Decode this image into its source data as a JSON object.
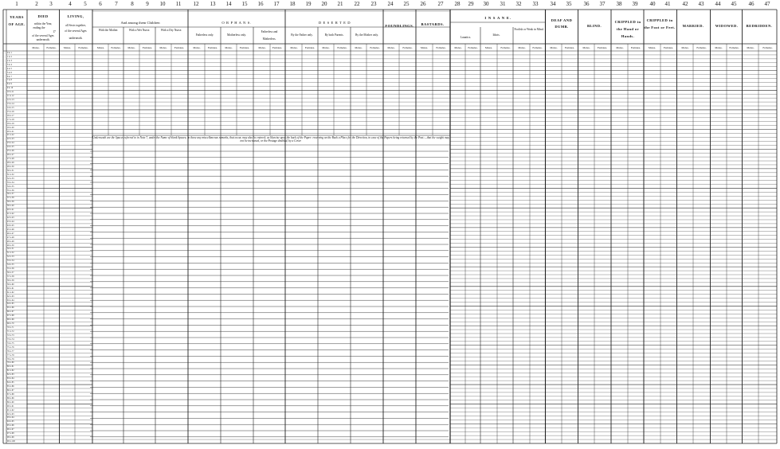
{
  "column_numbers": [
    "1",
    "2",
    "3",
    "4",
    "5",
    "6",
    "7",
    "8",
    "9",
    "10",
    "11",
    "12",
    "13",
    "14",
    "15",
    "16",
    "17",
    "18",
    "19",
    "20",
    "21",
    "22",
    "23",
    "24",
    "25",
    "26",
    "27",
    "28",
    "29",
    "30",
    "31",
    "32",
    "33",
    "34",
    "35",
    "36",
    "37",
    "38",
    "39",
    "40",
    "41",
    "42",
    "43",
    "44",
    "45",
    "46",
    "47"
  ],
  "headers": {
    "years_of_age": "YEARS OF AGE.",
    "died_title": "DIED",
    "died_line1": "within the Year,",
    "died_line2": "ending the",
    "died_line3": "of the several Ages",
    "died_line4": "underneath.",
    "died_year": "17",
    "living_title": "LIVING,",
    "living_line1": "all Sexts together,",
    "living_line2": "of the several Ages",
    "living_line3": "underneath.",
    "children_title": "And among them Children",
    "with_mother": "With the Mother.",
    "with_wet_nurse": "With a Wet Nurse.",
    "with_dry_nurse": "With a Dry Nurse.",
    "orphans_title": "O R P H A N S.",
    "fatherless": "Fatherless only.",
    "motherless": "Motherless only.",
    "fatherless_and_motherless": "Fatherless and Motherless.",
    "deserted_title": "D E S E R T E D",
    "by_father": "By the Father only.",
    "by_both": "By both Parents.",
    "by_mother": "By the Mother only.",
    "foundlings": "FOUNDLINGS.",
    "bastards": "BASTARDS.",
    "insane_title": "I N S A N E.",
    "lunatics": "Lunatics.",
    "idiots": "Idiots.",
    "foolish": "Foolish or Weak in Mind.",
    "deaf_dumb": "DEAF AND DUMB.",
    "blind": "BLIND.",
    "crippled_hand": "CRIPPLED in the Hand or Hands.",
    "crippled_foot": "CRIPPLED in the Foot or Feet.",
    "married": "MARRIED.",
    "widowed": "WIDOWED.",
    "bedridden": "BEDRIDDEN."
  },
  "sex_labels": {
    "males": "Males.",
    "females": "Females."
  },
  "note_text": "Underneath are the Spaces referred to in Note 7, under the Name of blank Spaces; in these any miscellaneous remarks, that occur, may also be entered; as likewise upon the back of the Paper: reserving on the Back a Place for the Direction, in case of the Papers being returned by the Post:—that the weight may not be increased, or the Postage doubled, by a Cover.",
  "age_rows": [
    "0 to 1",
    "1 to 2",
    "2 to 3",
    "3 to 4",
    "4 to 5",
    "5 to 6",
    "6 to 7",
    "7 to 8",
    "8 to 9",
    "9 to 10",
    "10 to 11",
    "11 to 12",
    "12 to 13",
    "13 to 14",
    "14 to 15",
    "15 to 16",
    "16 to 17",
    "17 to 18",
    "18 to 19",
    "19 to 20",
    "20 to 21",
    "21 to 22",
    "22 to 23",
    "23 to 24",
    "24 to 25",
    "25 to 26",
    "26 to 27",
    "27 to 28",
    "28 to 29",
    "29 to 30",
    "30 to 31",
    "31 to 32",
    "32 to 33",
    "33 to 34",
    "34 to 35",
    "35 to 36",
    "36 to 37",
    "37 to 38",
    "38 to 39",
    "39 to 40",
    "40 to 41",
    "41 to 42",
    "42 to 43",
    "43 to 44",
    "44 to 45",
    "45 to 46",
    "46 to 47",
    "47 to 48",
    "48 to 49",
    "49 to 50",
    "50 to 51",
    "51 to 52",
    "52 to 53",
    "53 to 54",
    "54 to 55",
    "55 to 56",
    "56 to 57",
    "57 to 58",
    "58 to 59",
    "59 to 60",
    "60 to 61",
    "61 to 62",
    "62 to 63",
    "63 to 64",
    "64 to 65",
    "65 to 66",
    "66 to 67",
    "67 to 68",
    "68 to 69",
    "69 to 70",
    "70 to 71",
    "71 to 72",
    "72 to 73",
    "73 to 74",
    "74 to 75",
    "75 to 76",
    "76 to 77",
    "77 to 78",
    "78 to 79",
    "79 to 80",
    "80 to 81",
    "81 to 82",
    "82 to 83",
    "83 to 84",
    "84 to 85",
    "85 to 86",
    "86 to 87",
    "87 to 88",
    "88 to 89",
    "89 to 90",
    "90 to 91",
    "91 to 92",
    "92 to 93",
    "93 to 94",
    "94 to 95",
    "95 to 96",
    "96 to 97",
    "97 to 98",
    "98 to 99",
    "99 to 100"
  ]
}
